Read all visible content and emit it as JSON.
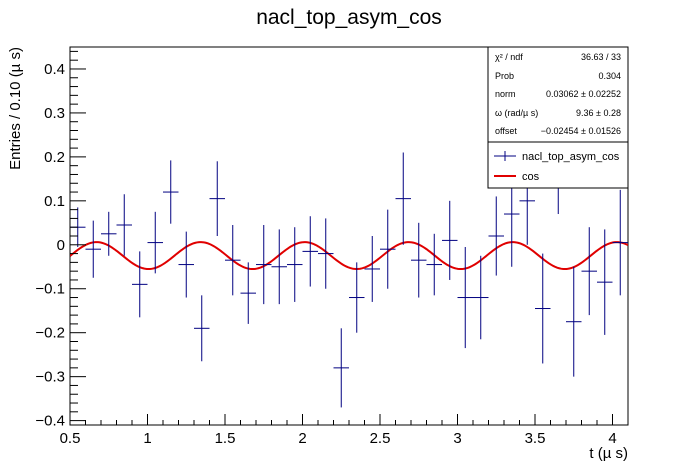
{
  "chart_data": {
    "type": "scatter",
    "title": "nacl_top_asym_cos",
    "xlabel": "t (µ s)",
    "ylabel": "Entries / 0.10 (µ s)",
    "xlim": [
      0.5,
      4.1
    ],
    "ylim": [
      -0.41,
      0.45
    ],
    "x_ticks": [
      0.5,
      1,
      1.5,
      2,
      2.5,
      3,
      3.5,
      4
    ],
    "x_tick_labels": [
      "0.5",
      "1",
      "1.5",
      "2",
      "2.5",
      "3",
      "3.5",
      "4"
    ],
    "y_ticks": [
      -0.4,
      -0.3,
      -0.2,
      -0.1,
      0,
      0.1,
      0.2,
      0.3,
      0.4
    ],
    "y_tick_labels": [
      "−0.4",
      "−0.3",
      "−0.2",
      "−0.1",
      "0",
      "0.1",
      "0.2",
      "0.3",
      "0.4"
    ],
    "grid": false,
    "stats_box": {
      "rows": [
        {
          "label": "χ² / ndf",
          "value": "36.63 / 33"
        },
        {
          "label": "Prob",
          "value": "0.304"
        },
        {
          "label": "norm",
          "value": "0.03062 ± 0.02252"
        },
        {
          "label": "ω (rad/µ s)",
          "value": "9.36 ± 0.28"
        },
        {
          "label": "offset",
          "value": "−0.02454 ± 0.01526"
        }
      ]
    },
    "legend": {
      "placement": "top-right",
      "entries": [
        {
          "label": "nacl_top_asym_cos",
          "color": "#000080",
          "kind": "data"
        },
        {
          "label": "cos",
          "color": "#e00000",
          "kind": "line"
        }
      ]
    },
    "series": [
      {
        "name": "nacl_top_asym_cos",
        "color": "#000080",
        "kind": "errorbar",
        "bin_half_width": 0.05,
        "points": [
          {
            "x": 0.55,
            "y": 0.04,
            "err": 0.045
          },
          {
            "x": 0.65,
            "y": -0.01,
            "err": 0.065
          },
          {
            "x": 0.75,
            "y": 0.025,
            "err": 0.05
          },
          {
            "x": 0.85,
            "y": 0.045,
            "err": 0.07
          },
          {
            "x": 0.95,
            "y": -0.09,
            "err": 0.075
          },
          {
            "x": 1.05,
            "y": 0.005,
            "err": 0.07
          },
          {
            "x": 1.15,
            "y": 0.12,
            "err": 0.072
          },
          {
            "x": 1.25,
            "y": -0.045,
            "err": 0.075
          },
          {
            "x": 1.35,
            "y": -0.19,
            "err": 0.075
          },
          {
            "x": 1.45,
            "y": 0.105,
            "err": 0.085
          },
          {
            "x": 1.55,
            "y": -0.035,
            "err": 0.08
          },
          {
            "x": 1.65,
            "y": -0.11,
            "err": 0.07
          },
          {
            "x": 1.75,
            "y": -0.045,
            "err": 0.09
          },
          {
            "x": 1.85,
            "y": -0.05,
            "err": 0.085
          },
          {
            "x": 1.95,
            "y": -0.045,
            "err": 0.085
          },
          {
            "x": 2.05,
            "y": -0.015,
            "err": 0.08
          },
          {
            "x": 2.15,
            "y": -0.02,
            "err": 0.08
          },
          {
            "x": 2.25,
            "y": -0.28,
            "err": 0.09
          },
          {
            "x": 2.35,
            "y": -0.12,
            "err": 0.08
          },
          {
            "x": 2.45,
            "y": -0.055,
            "err": 0.075
          },
          {
            "x": 2.55,
            "y": -0.01,
            "err": 0.09
          },
          {
            "x": 2.65,
            "y": 0.105,
            "err": 0.105
          },
          {
            "x": 2.75,
            "y": -0.035,
            "err": 0.085
          },
          {
            "x": 2.85,
            "y": -0.045,
            "err": 0.07
          },
          {
            "x": 2.95,
            "y": 0.01,
            "err": 0.09
          },
          {
            "x": 3.05,
            "y": -0.12,
            "err": 0.115
          },
          {
            "x": 3.15,
            "y": -0.12,
            "err": 0.095
          },
          {
            "x": 3.25,
            "y": 0.02,
            "err": 0.09
          },
          {
            "x": 3.35,
            "y": 0.07,
            "err": 0.12
          },
          {
            "x": 3.45,
            "y": 0.1,
            "err": 0.1
          },
          {
            "x": 3.55,
            "y": -0.145,
            "err": 0.125
          },
          {
            "x": 3.65,
            "y": 0.2,
            "err": 0.13
          },
          {
            "x": 3.75,
            "y": -0.175,
            "err": 0.125
          },
          {
            "x": 3.85,
            "y": -0.06,
            "err": 0.1
          },
          {
            "x": 3.95,
            "y": -0.085,
            "err": 0.12
          },
          {
            "x": 4.05,
            "y": 0.005,
            "err": 0.12
          }
        ]
      },
      {
        "name": "cos",
        "color": "#e00000",
        "kind": "function",
        "formula": "norm*cos(omega*t) + offset",
        "params": {
          "norm": 0.03062,
          "omega": 9.36,
          "offset": -0.02454
        },
        "x_range": [
          0.5,
          4.1
        ]
      }
    ]
  }
}
